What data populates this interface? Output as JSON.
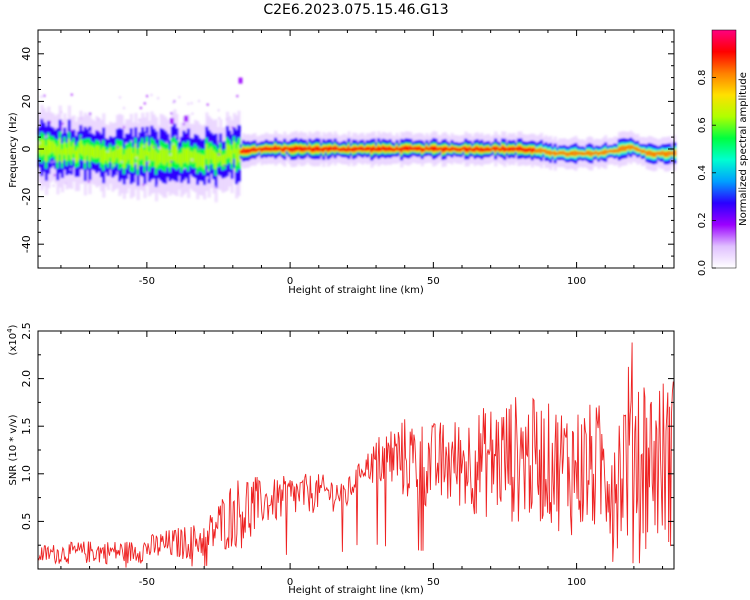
{
  "chart_data": [
    {
      "type": "heatmap",
      "title": "C2E6.2023.075.15.46.G13",
      "xlabel": "Height of straight line (km)",
      "ylabel": "Frequency (Hz)",
      "xlim": [
        -88,
        134
      ],
      "ylim": [
        -50,
        50
      ],
      "xticks": [
        -50,
        0,
        50,
        100
      ],
      "yticks": [
        -40,
        -20,
        0,
        20,
        40
      ],
      "colorbar": {
        "label": "Normalized spectral amplitude",
        "range": [
          0,
          1
        ],
        "ticks": [
          "0.0",
          "0.2",
          "0.4",
          "0.6",
          "0.8"
        ],
        "colormap": [
          "#ffffff",
          "#e0c0ff",
          "#9b00ff",
          "#2a00ff",
          "#00a0ff",
          "#00ffd0",
          "#00ff40",
          "#b0ff00",
          "#ffe000",
          "#ff8000",
          "#ff0000",
          "#ff0080"
        ]
      },
      "ridge": {
        "x": [
          -88,
          -70,
          -55,
          -45,
          -35,
          -25,
          -18,
          -10,
          0,
          20,
          40,
          60,
          80,
          95,
          105,
          112,
          118,
          125,
          134
        ],
        "frequency": [
          0,
          -2,
          -3,
          -2,
          -4,
          -3,
          -1,
          0,
          0,
          0,
          0,
          0,
          0,
          -2,
          -2,
          -1,
          1,
          -2,
          -2
        ]
      }
    },
    {
      "type": "line",
      "xlabel": "Height of straight line (km)",
      "ylabel": "SNR (10 * v/v)",
      "y_multiplier": "(x10^4)",
      "xlim": [
        -88,
        134
      ],
      "ylim": [
        0,
        2.5
      ],
      "xticks": [
        -50,
        0,
        50,
        100
      ],
      "yticks": [
        "0.5",
        "1.0",
        "1.5",
        "2.0",
        "2.5"
      ],
      "color": "#ee2222",
      "envelope": {
        "x": [
          -88,
          -70,
          -55,
          -45,
          -30,
          -20,
          -13,
          -10,
          0,
          10,
          20,
          25,
          33,
          40,
          50,
          60,
          70,
          80,
          90,
          100,
          110,
          115,
          120,
          125,
          134
        ],
        "low": [
          0.05,
          0.05,
          0.05,
          0.08,
          0.1,
          0.2,
          0.2,
          0.45,
          0.5,
          0.6,
          0.6,
          0.95,
          0.8,
          0.7,
          0.6,
          0.6,
          0.5,
          0.45,
          0.45,
          0.3,
          0.3,
          0.2,
          0.2,
          0.2,
          0.2
        ],
        "high": [
          0.25,
          0.3,
          0.3,
          0.4,
          0.5,
          0.95,
          1.05,
          0.9,
          1.0,
          1.0,
          0.95,
          1.15,
          1.5,
          1.6,
          1.55,
          1.6,
          1.75,
          1.85,
          1.75,
          1.75,
          1.75,
          1.8,
          2.5,
          2.0,
          2.05
        ]
      }
    }
  ]
}
